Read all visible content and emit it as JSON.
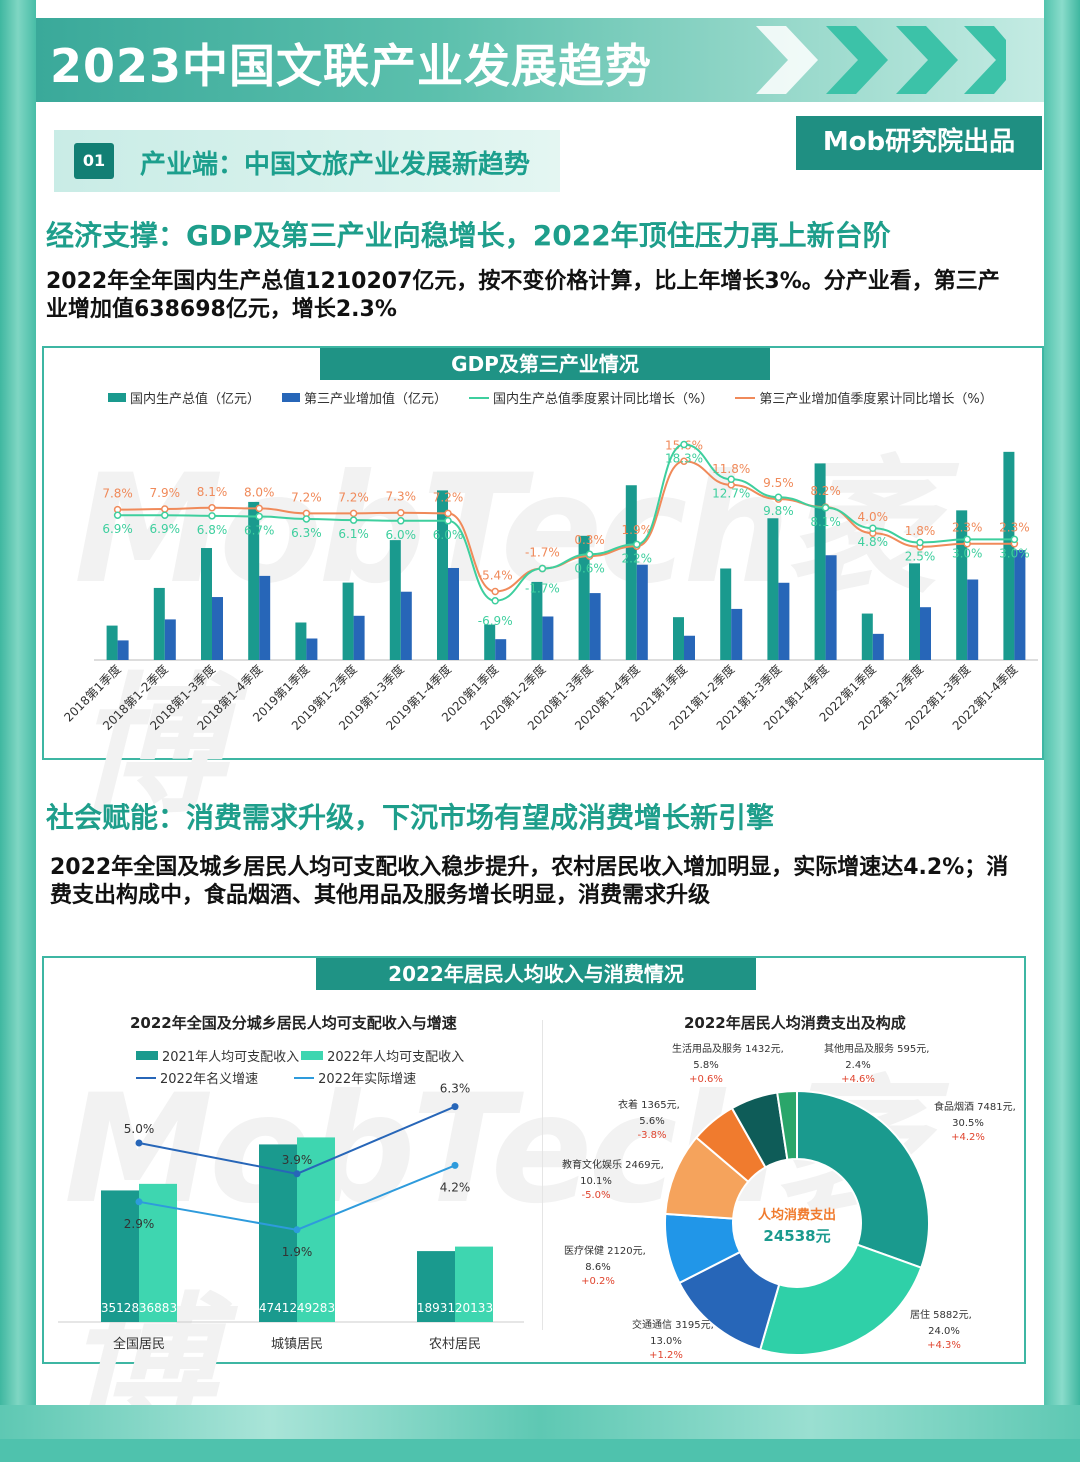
{
  "page_title": "2023中国文联产业发展趋势",
  "section": {
    "num": "01",
    "title": "产业端：中国文旅产业发展新趋势"
  },
  "badge": "Mob研究院出品",
  "watermark": "MobTech袤博",
  "block1": {
    "heading": "经济支撑：GDP及第三产业向稳增长，2022年顶住压力再上新台阶",
    "paragraph": "2022年全年国内生产总值1210207亿元，按不变价格计算，比上年增长3%。分产业看，第三产业增加值638698亿元，增长2.3%",
    "box_title": "GDP及第三产业情况"
  },
  "block2": {
    "heading": "社会赋能：消费需求升级，下沉市场有望成消费增长新引擎",
    "paragraph": "2022年全国及城乡居民人均可支配收入稳步提升，农村居民收入增加明显，实际增速达4.2%；消费支出构成中，食品烟酒、其他用品及服务增长明显，消费需求升级",
    "box_title": "2022年居民人均收入与消费情况"
  },
  "colors": {
    "teal": "#1a9a8e",
    "blue": "#2766b8",
    "green_line": "#3ecf9e",
    "orange_line": "#f08a5a",
    "light_teal": "#3ed6b0"
  },
  "chart_data": [
    {
      "type": "bar",
      "title": "GDP及第三产业情况",
      "categories": [
        "2018第1季度",
        "2018第1-2季度",
        "2018第1-3季度",
        "2018第1-4季度",
        "2019第1季度",
        "2019第1-2季度",
        "2019第1-3季度",
        "2019第1-4季度",
        "2020第1季度",
        "2020第1-2季度",
        "2020第1-3季度",
        "2020第1-4季度",
        "2021第1季度",
        "2021第1-2季度",
        "2021第1-3季度",
        "2021第1-4季度",
        "2022第1季度",
        "2022第1-2季度",
        "2022第1-3季度",
        "2022第1-4季度"
      ],
      "series": [
        {
          "name": "国内生产总值（亿元）",
          "kind": "bar",
          "color": "#1a9a8e",
          "values": [
            200000,
            419000,
            651000,
            919000,
            218000,
            450000,
            697000,
            986000,
            206000,
            454000,
            722000,
            1016000,
            249000,
            532000,
            824000,
            1143000,
            270000,
            562000,
            870000,
            1210207
          ]
        },
        {
          "name": "第三产业增加值（亿元）",
          "kind": "bar",
          "color": "#2766b8",
          "values": [
            114000,
            236000,
            366000,
            489000,
            125000,
            257000,
            397000,
            535000,
            121000,
            253000,
            389000,
            554000,
            141000,
            297000,
            449000,
            609000,
            152000,
            307000,
            468000,
            638698
          ]
        },
        {
          "name": "国内生产总值季度累计同比增长（%）",
          "kind": "line",
          "color": "#3ecf9e",
          "values": [
            6.9,
            6.9,
            6.8,
            6.7,
            6.3,
            6.1,
            6.0,
            6.0,
            -6.9,
            -1.7,
            0.6,
            2.2,
            18.3,
            12.7,
            9.8,
            8.1,
            4.8,
            2.5,
            3.0,
            3.0
          ]
        },
        {
          "name": "第三产业增加值季度累计同比增长（%）",
          "kind": "line",
          "color": "#f08a5a",
          "values": [
            7.8,
            7.9,
            8.1,
            8.0,
            7.2,
            7.2,
            7.3,
            7.2,
            -5.4,
            -1.7,
            0.3,
            1.9,
            15.6,
            11.8,
            9.5,
            8.2,
            4.0,
            1.8,
            2.3,
            2.3
          ]
        }
      ],
      "line_labels": {
        "gdp": [
          "6.9%",
          "6.9%",
          "6.8%",
          "6.7%",
          "6.3%",
          "6.1%",
          "6.0%",
          "6.0%",
          "-6.9%",
          "-1.7%",
          "0.6%",
          "2.2%",
          "18.3%",
          "12.7%",
          "9.8%",
          "8.1%",
          "4.8%",
          "2.5%",
          "3.0%",
          "3.0%"
        ],
        "tertiary": [
          "7.8%",
          "7.9%",
          "8.1%",
          "8.0%",
          "7.2%",
          "7.2%",
          "7.3%",
          "7.2%",
          "-5.4%",
          "-1.7%",
          "0.3%",
          "1.9%",
          "15.6%",
          "11.8%",
          "9.5%",
          "8.2%",
          "4.0%",
          "1.8%",
          "2.3%",
          "2.3%"
        ]
      },
      "legend_position": "top"
    },
    {
      "type": "bar",
      "title": "2022年全国及分城乡居民人均可支配收入与增速",
      "categories": [
        "全国居民",
        "城镇居民",
        "农村居民"
      ],
      "series": [
        {
          "name": "2021年人均可支配收入",
          "kind": "bar",
          "color": "#1a9a8e",
          "values": [
            35128,
            47412,
            18931
          ],
          "labels": [
            "35128",
            "47412",
            "18931"
          ]
        },
        {
          "name": "2022年人均可支配收入",
          "kind": "bar",
          "color": "#3ed6b0",
          "values": [
            36883,
            49283,
            20133
          ],
          "labels": [
            "36883",
            "49283",
            "20133"
          ]
        },
        {
          "name": "2022年名义增速",
          "kind": "line",
          "color": "#2766b8",
          "values": [
            5.0,
            3.9,
            6.3
          ],
          "labels": [
            "5.0%",
            "3.9%",
            "6.3%"
          ]
        },
        {
          "name": "2022年实际增速",
          "kind": "line",
          "color": "#2e9bdc",
          "values": [
            2.9,
            1.9,
            4.2
          ],
          "labels": [
            "2.9%",
            "1.9%",
            "4.2%"
          ]
        }
      ],
      "legend_position": "top"
    },
    {
      "type": "pie",
      "title": "2022年居民人均消费支出及构成",
      "center_label": "人均消费支出",
      "center_value": "24538元",
      "slices": [
        {
          "name": "食品烟酒",
          "amount": "7481元,",
          "value": 30.5,
          "share": "30.5%",
          "change": "+4.2%",
          "color": "#1a9a8e"
        },
        {
          "name": "居住",
          "amount": "5882元,",
          "value": 24.0,
          "share": "24.0%",
          "change": "+4.3%",
          "color": "#2fd0a8"
        },
        {
          "name": "交通通信",
          "amount": "3195元,",
          "value": 13.0,
          "share": "13.0%",
          "change": "+1.2%",
          "color": "#2766b8"
        },
        {
          "name": "医疗保健",
          "amount": "2120元,",
          "value": 8.6,
          "share": "8.6%",
          "change": "+0.2%",
          "color": "#2196e8"
        },
        {
          "name": "教育文化娱乐",
          "amount": "2469元,",
          "value": 10.1,
          "share": "10.1%",
          "change": "-5.0%",
          "color": "#f5a35c"
        },
        {
          "name": "衣着",
          "amount": "1365元,",
          "value": 5.6,
          "share": "5.6%",
          "change": "-3.8%",
          "color": "#f07b2e"
        },
        {
          "name": "生活用品及服务",
          "amount": "1432元,",
          "value": 5.8,
          "share": "5.8%",
          "change": "+0.6%",
          "color": "#0e5c58"
        },
        {
          "name": "其他用品及服务",
          "amount": "595元,",
          "value": 2.4,
          "share": "2.4%",
          "change": "+4.6%",
          "color": "#2aa66a"
        }
      ]
    }
  ]
}
